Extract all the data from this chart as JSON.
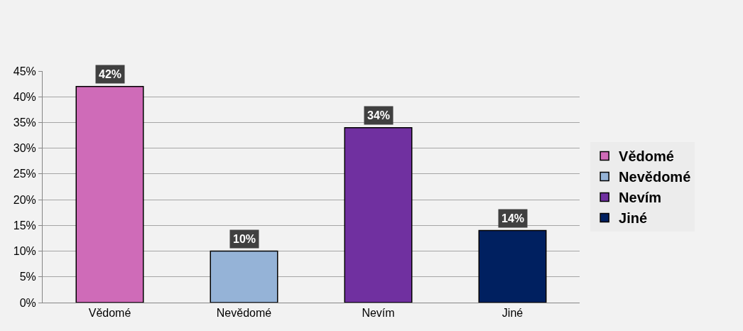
{
  "chart_data": {
    "type": "bar",
    "categories": [
      "Vědomé",
      "Nevědomé",
      "Nevím",
      "Jiné"
    ],
    "series": [
      {
        "name": "Vědomé",
        "color": "#cf6bb8",
        "values": [
          42,
          null,
          null,
          null
        ],
        "value_labels": [
          "42%",
          null,
          null,
          null
        ]
      },
      {
        "name": "Nevědomé",
        "color": "#95b3d7",
        "values": [
          null,
          10,
          null,
          null
        ],
        "value_labels": [
          null,
          "10%",
          null,
          null
        ]
      },
      {
        "name": "Nevím",
        "color": "#7030a0",
        "values": [
          null,
          null,
          34,
          null
        ],
        "value_labels": [
          null,
          null,
          "34%",
          null
        ]
      },
      {
        "name": "Jiné",
        "color": "#002060",
        "values": [
          null,
          null,
          null,
          14
        ],
        "value_labels": [
          null,
          null,
          null,
          "14%"
        ]
      }
    ],
    "ylim": [
      0,
      45
    ],
    "yticks": [
      {
        "value": 0,
        "label": "0%"
      },
      {
        "value": 5,
        "label": "5%"
      },
      {
        "value": 10,
        "label": "10%"
      },
      {
        "value": 15,
        "label": "15%"
      },
      {
        "value": 20,
        "label": "20%"
      },
      {
        "value": 25,
        "label": "25%"
      },
      {
        "value": 30,
        "label": "30%"
      },
      {
        "value": 35,
        "label": "35%"
      },
      {
        "value": 40,
        "label": "40%"
      },
      {
        "value": 45,
        "label": "45%"
      }
    ],
    "grid": "y",
    "legend": "right"
  }
}
